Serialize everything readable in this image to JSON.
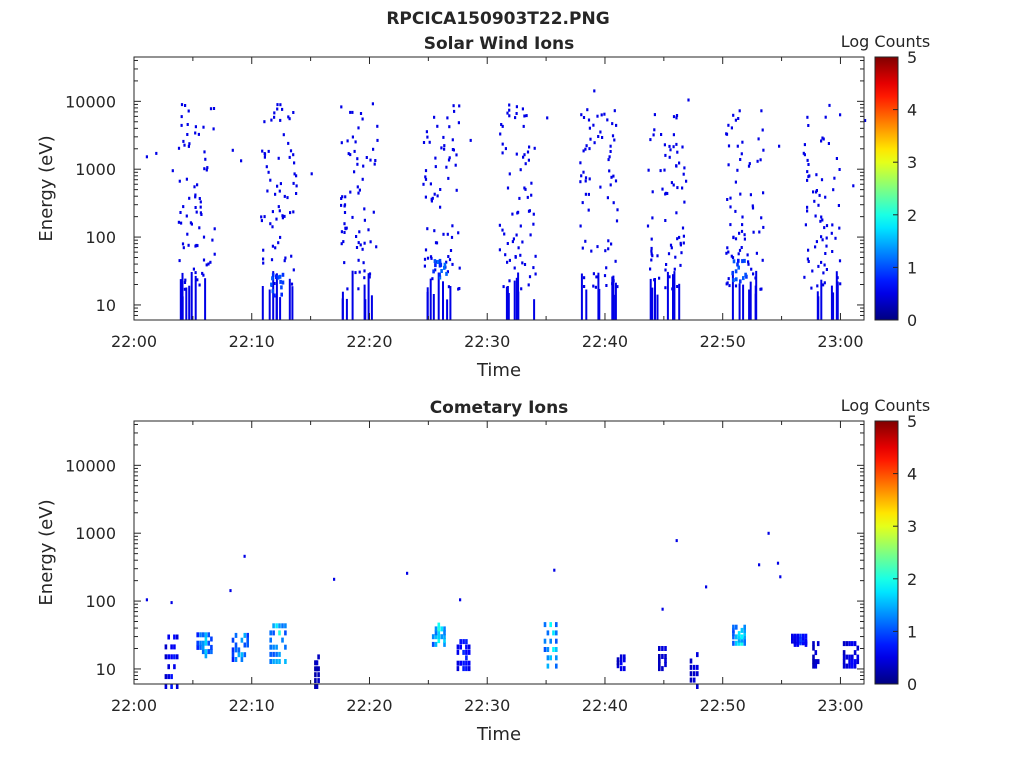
{
  "page_title": "RPCICA150903T22.PNG",
  "chart_data": [
    {
      "type": "heatmap",
      "title": "Solar Wind Ions",
      "xlabel": "Time",
      "ylabel": "Energy (eV)",
      "x_ticks": [
        "22:00",
        "22:10",
        "22:20",
        "22:30",
        "22:40",
        "22:50",
        "23:00"
      ],
      "y_ticks": [
        "10",
        "100",
        "1000",
        "10000"
      ],
      "y_scale": "log",
      "ylim": [
        6,
        45000
      ],
      "xlim_minutes": [
        0,
        62
      ],
      "colorbar": {
        "label": "Log Counts",
        "min": 0,
        "max": 5,
        "ticks": [
          "0",
          "1",
          "2",
          "3",
          "4",
          "5"
        ]
      },
      "sweep_centers_minutes": [
        5.3,
        12.2,
        19.1,
        26.0,
        32.5,
        39.4,
        45.1,
        51.8,
        58.3
      ],
      "hotspots": [
        {
          "t": 12.1,
          "e": 22,
          "log_counts": 1.0
        },
        {
          "t": 25.9,
          "e": 38,
          "log_counts": 1.1
        },
        {
          "t": 51.3,
          "e": 35,
          "log_counts": 1.0
        }
      ],
      "scattered_points": [
        {
          "t": 1.0,
          "e": 1600
        },
        {
          "t": 1.8,
          "e": 1800
        },
        {
          "t": 3.2,
          "e": 1000
        },
        {
          "t": 3.8,
          "e": 700
        },
        {
          "t": 4.4,
          "e": 750
        },
        {
          "t": 8.3,
          "e": 2000
        },
        {
          "t": 9.0,
          "e": 1400
        },
        {
          "t": 15.0,
          "e": 900
        },
        {
          "t": 28.5,
          "e": 2800
        },
        {
          "t": 35.0,
          "e": 6000
        },
        {
          "t": 40.3,
          "e": 1600
        },
        {
          "t": 46.2,
          "e": 1300
        },
        {
          "t": 46.8,
          "e": 700
        },
        {
          "t": 54.7,
          "e": 2300
        },
        {
          "t": 61.0,
          "e": 600
        },
        {
          "t": 62.0,
          "e": 5500
        },
        {
          "t": 47.0,
          "e": 11000
        },
        {
          "t": 39.0,
          "e": 15000
        }
      ],
      "grid": false
    },
    {
      "type": "heatmap",
      "title": "Cometary Ions",
      "xlabel": "Time",
      "ylabel": "Energy (eV)",
      "x_ticks": [
        "22:00",
        "22:10",
        "22:20",
        "22:30",
        "22:40",
        "22:50",
        "23:00"
      ],
      "y_ticks": [
        "10",
        "100",
        "1000",
        "10000"
      ],
      "y_scale": "log",
      "ylim": [
        6,
        45000
      ],
      "xlim_minutes": [
        0,
        62
      ],
      "colorbar": {
        "label": "Log Counts",
        "min": 0,
        "max": 5,
        "ticks": [
          "0",
          "1",
          "2",
          "3",
          "4",
          "5"
        ]
      },
      "clusters": [
        {
          "t0": 2.6,
          "t1": 3.8,
          "e0": 6,
          "e1": 45,
          "peak": 0.7
        },
        {
          "t0": 5.3,
          "t1": 6.7,
          "e0": 17,
          "e1": 40,
          "peak": 1.5
        },
        {
          "t0": 8.3,
          "t1": 9.8,
          "e0": 15,
          "e1": 40,
          "peak": 1.5
        },
        {
          "t0": 11.5,
          "t1": 13.0,
          "e0": 14,
          "e1": 60,
          "peak": 1.8
        },
        {
          "t0": 15.3,
          "t1": 15.7,
          "e0": 6,
          "e1": 20,
          "peak": 0.4
        },
        {
          "t0": 25.3,
          "t1": 26.5,
          "e0": 25,
          "e1": 55,
          "peak": 2.0
        },
        {
          "t0": 27.4,
          "t1": 28.6,
          "e0": 11,
          "e1": 33,
          "peak": 0.8
        },
        {
          "t0": 34.8,
          "t1": 36.0,
          "e0": 12,
          "e1": 65,
          "peak": 1.8
        },
        {
          "t0": 41.0,
          "t1": 41.8,
          "e0": 11,
          "e1": 20,
          "peak": 0.6
        },
        {
          "t0": 44.5,
          "t1": 45.3,
          "e0": 11,
          "e1": 25,
          "peak": 0.5
        },
        {
          "t0": 47.2,
          "t1": 48.0,
          "e0": 6,
          "e1": 22,
          "peak": 0.5
        },
        {
          "t0": 50.8,
          "t1": 52.0,
          "e0": 26,
          "e1": 50,
          "peak": 1.9
        },
        {
          "t0": 55.8,
          "t1": 57.2,
          "e0": 25,
          "e1": 35,
          "peak": 0.8
        },
        {
          "t0": 57.6,
          "t1": 58.2,
          "e0": 12,
          "e1": 30,
          "peak": 0.5
        },
        {
          "t0": 60.2,
          "t1": 61.6,
          "e0": 12,
          "e1": 30,
          "peak": 0.6
        }
      ],
      "scattered_points": [
        {
          "t": 1.0,
          "e": 110
        },
        {
          "t": 3.1,
          "e": 100
        },
        {
          "t": 8.1,
          "e": 150
        },
        {
          "t": 9.3,
          "e": 480
        },
        {
          "t": 16.9,
          "e": 220
        },
        {
          "t": 23.1,
          "e": 270
        },
        {
          "t": 27.6,
          "e": 110
        },
        {
          "t": 35.6,
          "e": 300
        },
        {
          "t": 46.0,
          "e": 820
        },
        {
          "t": 48.5,
          "e": 170
        },
        {
          "t": 53.0,
          "e": 360
        },
        {
          "t": 53.8,
          "e": 1050
        },
        {
          "t": 54.6,
          "e": 380
        },
        {
          "t": 54.8,
          "e": 240
        },
        {
          "t": 44.8,
          "e": 80
        }
      ],
      "grid": false
    }
  ]
}
